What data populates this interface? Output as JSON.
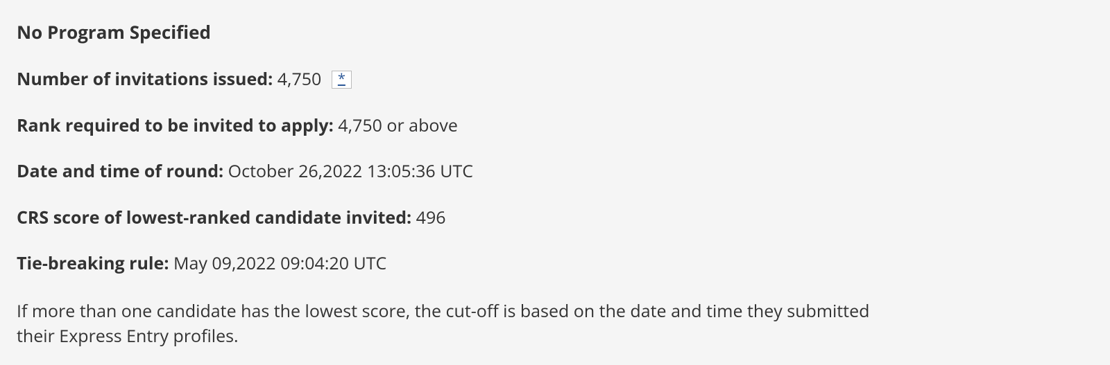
{
  "heading": "No Program Specified",
  "rows": {
    "invitations": {
      "label": "Number of invitations issued:",
      "value": "4,750",
      "footnote_symbol": "*"
    },
    "rank": {
      "label": "Rank required to be invited to apply:",
      "value": "4,750 or above"
    },
    "datetime": {
      "label": "Date and time of round:",
      "value": "October 26,2022 13:05:36 UTC"
    },
    "crs": {
      "label": "CRS score of lowest-ranked candidate invited:",
      "value": "496"
    },
    "tiebreak": {
      "label": "Tie-breaking rule:",
      "value": "May 09,2022 09:04:20 UTC"
    }
  },
  "explain": "If more than one candidate has the lowest score, the cut-off is based on the date and time they submitted their Express Entry profiles."
}
